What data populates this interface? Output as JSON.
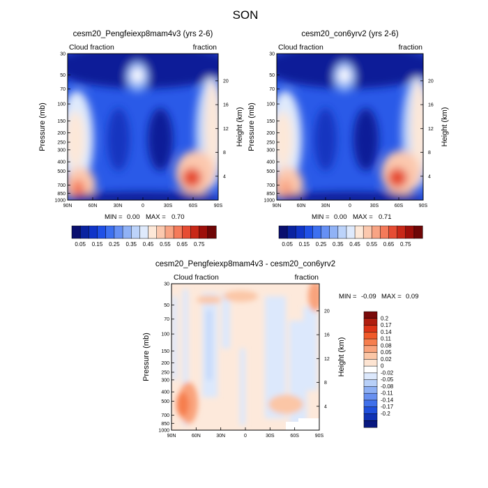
{
  "figure": {
    "title": "SON"
  },
  "chart_data": [
    {
      "type": "heatmap",
      "title": "cesm20_Pengfeiexp8mam4v3 (yrs 2-6)",
      "left_label": "Cloud fraction",
      "right_label": "fraction",
      "xlabel": "",
      "ylabel": "Pressure (mb)",
      "y2label": "Height (km)",
      "x_ticks": [
        "90N",
        "60N",
        "30N",
        "0",
        "30S",
        "60S",
        "90S"
      ],
      "y_ticks": [
        30,
        50,
        70,
        100,
        150,
        200,
        250,
        300,
        400,
        500,
        700,
        850,
        1000
      ],
      "y2_ticks": [
        4,
        8,
        12,
        16,
        20
      ],
      "min_label": "MIN =",
      "min_value": "0.00",
      "max_label": "MAX =",
      "max_value": "0.70",
      "colorbar": {
        "orientation": "horizontal",
        "labels": [
          "0.05",
          "0.15",
          "0.25",
          "0.35",
          "0.45",
          "0.55",
          "0.65",
          "0.75"
        ],
        "colors": [
          "#0a0f6e",
          "#0a23a0",
          "#1035c8",
          "#1f50e6",
          "#3d70f0",
          "#6690f4",
          "#90b2f6",
          "#bcd3fa",
          "#dfeafc",
          "#fde8d8",
          "#fbc8ae",
          "#f8a484",
          "#f47a5a",
          "#e64c33",
          "#c82818",
          "#9e0f0a",
          "#6e0606"
        ]
      }
    },
    {
      "type": "heatmap",
      "title": "cesm20_con6yrv2 (yrs 2-6)",
      "left_label": "Cloud fraction",
      "right_label": "fraction",
      "xlabel": "",
      "ylabel": "Pressure (mb)",
      "y2label": "Height (km)",
      "x_ticks": [
        "90N",
        "60N",
        "30N",
        "0",
        "30S",
        "60S",
        "90S"
      ],
      "y_ticks": [
        30,
        50,
        70,
        100,
        150,
        200,
        250,
        300,
        400,
        500,
        700,
        850,
        1000
      ],
      "y2_ticks": [
        4,
        8,
        12,
        16,
        20
      ],
      "min_label": "MIN =",
      "min_value": "0.00",
      "max_label": "MAX =",
      "max_value": "0.71",
      "colorbar": {
        "orientation": "horizontal",
        "labels": [
          "0.05",
          "0.15",
          "0.25",
          "0.35",
          "0.45",
          "0.55",
          "0.65",
          "0.75"
        ],
        "colors": [
          "#0a0f6e",
          "#0a23a0",
          "#1035c8",
          "#1f50e6",
          "#3d70f0",
          "#6690f4",
          "#90b2f6",
          "#bcd3fa",
          "#dfeafc",
          "#fde8d8",
          "#fbc8ae",
          "#f8a484",
          "#f47a5a",
          "#e64c33",
          "#c82818",
          "#9e0f0a",
          "#6e0606"
        ]
      }
    },
    {
      "type": "heatmap",
      "title": "cesm20_Pengfeiexp8mam4v3 - cesm20_con6yrv2",
      "left_label": "Cloud fraction",
      "right_label": "fraction",
      "xlabel": "",
      "ylabel": "Pressure (mb)",
      "y2label": "Height (km)",
      "x_ticks": [
        "90N",
        "60N",
        "30N",
        "0",
        "30S",
        "60S",
        "90S"
      ],
      "y_ticks": [
        30,
        50,
        70,
        100,
        150,
        200,
        250,
        300,
        400,
        500,
        700,
        850,
        1000
      ],
      "y2_ticks": [
        4,
        8,
        12,
        16,
        20
      ],
      "min_label": "MIN =",
      "min_value": "-0.09",
      "max_label": "MAX =",
      "max_value": "0.09",
      "colorbar": {
        "orientation": "vertical",
        "labels": [
          "0.2",
          "0.17",
          "0.14",
          "0.11",
          "0.08",
          "0.05",
          "0.02",
          "0",
          "-0.02",
          "-0.05",
          "-0.08",
          "-0.11",
          "-0.14",
          "-0.17",
          "-0.2"
        ],
        "colors": [
          "#7a0a0a",
          "#b01e10",
          "#dc3418",
          "#f05a2a",
          "#f67e4e",
          "#f9a37c",
          "#fbc6a6",
          "#fde4d2",
          "#ffffff",
          "#dce8fc",
          "#b8d0f8",
          "#8eb0f4",
          "#6890f0",
          "#4070ea",
          "#2050dc",
          "#1032b4",
          "#081880"
        ]
      }
    }
  ]
}
